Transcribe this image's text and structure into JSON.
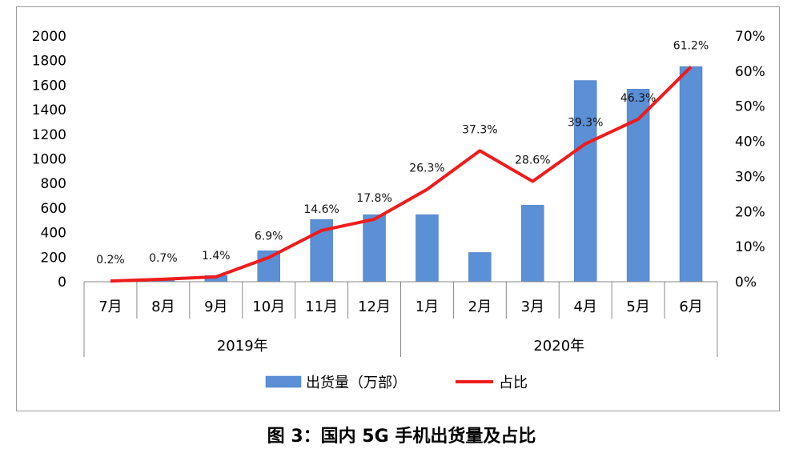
{
  "caption": "图 3：国内 5G 手机出货量及占比",
  "chart_data": {
    "type": "bar",
    "categories": [
      "7月",
      "8月",
      "9月",
      "10月",
      "11月",
      "12月",
      "1月",
      "2月",
      "3月",
      "4月",
      "5月",
      "6月"
    ],
    "groups": [
      {
        "label": "2019年",
        "span": 6
      },
      {
        "label": "2020年",
        "span": 6
      }
    ],
    "series": [
      {
        "name": "出货量（万部）",
        "kind": "bar",
        "axis": "left",
        "color": "#5b8fd6",
        "values": [
          0,
          10,
          50,
          252,
          507,
          546,
          546,
          238,
          623,
          1638,
          1568,
          1751
        ]
      },
      {
        "name": "占比",
        "kind": "line",
        "axis": "right",
        "color": "#ee1c1c",
        "values": [
          0.2,
          0.7,
          1.4,
          6.9,
          14.6,
          17.8,
          26.3,
          37.3,
          28.6,
          39.3,
          46.3,
          61.2
        ],
        "labels": [
          "0.2%",
          "0.7%",
          "1.4%",
          "6.9%",
          "14.6%",
          "17.8%",
          "26.3%",
          "37.3%",
          "28.6%",
          "39.3%",
          "46.3%",
          "61.2%"
        ]
      }
    ],
    "ylim": [
      0,
      2000
    ],
    "yticks": [
      "0",
      "200",
      "400",
      "600",
      "800",
      "1000",
      "1200",
      "1400",
      "1600",
      "1800",
      "2000"
    ],
    "y2lim": [
      0,
      70
    ],
    "y2ticks": [
      "0%",
      "10%",
      "20%",
      "30%",
      "40%",
      "50%",
      "60%",
      "70%"
    ],
    "grid": false,
    "legend_position": "bottom"
  }
}
